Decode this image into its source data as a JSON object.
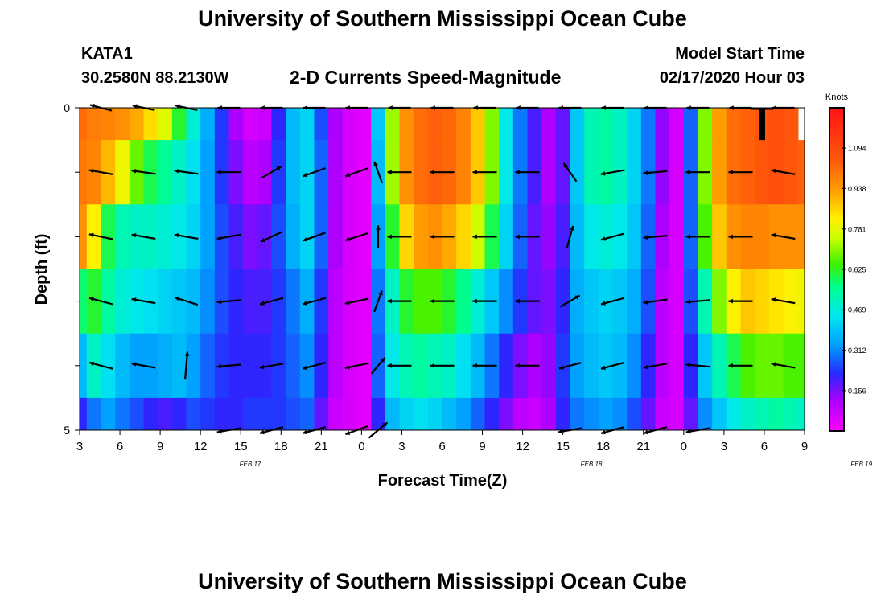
{
  "header": {
    "title": "University of Southern Mississippi Ocean Cube",
    "station": "KATA1",
    "coordinates": "30.2580N 88.2130W",
    "subtitle": "2-D Currents Speed-Magnitude",
    "model_start_label": "Model Start Time",
    "model_start_value": "02/17/2020 Hour 03"
  },
  "footer": {
    "title": "University of Southern Mississippi Ocean Cube"
  },
  "chart_data": {
    "type": "heatmap",
    "title": "2-D Currents Speed-Magnitude",
    "xlabel": "Forecast Time(Z)",
    "ylabel": "Depth (ft)",
    "x_hours": [
      3,
      54
    ],
    "y_range": [
      0,
      5
    ],
    "x_ticks": [
      "3",
      "6",
      "9",
      "12",
      "15",
      "18",
      "21",
      "0",
      "3",
      "6",
      "9",
      "12",
      "15",
      "18",
      "21",
      "0",
      "3",
      "6",
      "9"
    ],
    "y_ticks": [
      "0",
      "",
      "",
      "",
      "",
      "5"
    ],
    "date_labels": [
      {
        "label": "FEB 17",
        "hour": 15
      },
      {
        "label": "FEB 18",
        "hour": 39
      },
      {
        "label": "FEB 19",
        "hour": 58
      }
    ],
    "colorbar": {
      "label": "Knots",
      "min": 0.0,
      "max": 1.25,
      "ticks": [
        "0.156",
        "0.312",
        "0.469",
        "0.625",
        "0.781",
        "0.938",
        "1.094"
      ],
      "tick_values": [
        0.156,
        0.312,
        0.469,
        0.625,
        0.781,
        0.938,
        1.094
      ]
    },
    "depth_layers": 5,
    "speed_profile_hours": [
      3,
      4,
      5,
      6,
      7,
      8,
      9,
      10,
      11,
      12,
      13,
      14,
      15,
      16,
      17,
      18,
      19,
      20,
      21,
      22,
      23,
      24,
      25,
      26,
      27,
      28,
      29,
      30,
      31,
      32,
      33,
      34,
      35,
      36,
      37,
      38,
      39,
      40,
      41,
      42,
      43,
      44,
      45,
      46,
      47,
      48,
      49,
      50,
      51,
      52,
      53,
      54
    ],
    "speed_by_layer": [
      [
        1.02,
        0.99,
        0.98,
        0.96,
        0.92,
        0.85,
        0.78,
        0.62,
        0.48,
        0.36,
        0.24,
        0.12,
        0.06,
        0.08,
        0.22,
        0.38,
        0.42,
        0.26,
        0.12,
        0.06,
        0.04,
        0.4,
        0.72,
        0.96,
        1.02,
        1.04,
        1.03,
        0.98,
        0.88,
        0.7,
        0.46,
        0.3,
        0.2,
        0.12,
        0.18,
        0.4,
        0.52,
        0.54,
        0.5,
        0.42,
        0.3,
        0.14,
        0.06,
        0.28,
        0.7,
        0.94,
        1.02,
        1.04,
        1.06,
        1.08,
        1.06,
        1.04
      ],
      [
        1.0,
        0.98,
        0.9,
        0.8,
        0.68,
        0.6,
        0.55,
        0.5,
        0.44,
        0.34,
        0.24,
        0.16,
        0.1,
        0.12,
        0.24,
        0.38,
        0.42,
        0.28,
        0.12,
        0.06,
        0.04,
        0.38,
        0.72,
        0.96,
        1.02,
        1.04,
        1.03,
        0.98,
        0.88,
        0.7,
        0.46,
        0.3,
        0.2,
        0.12,
        0.18,
        0.4,
        0.52,
        0.54,
        0.5,
        0.42,
        0.3,
        0.14,
        0.06,
        0.28,
        0.7,
        0.94,
        1.02,
        1.04,
        1.06,
        1.08,
        1.06,
        1.04
      ],
      [
        0.96,
        0.82,
        0.6,
        0.52,
        0.5,
        0.5,
        0.48,
        0.46,
        0.42,
        0.34,
        0.26,
        0.2,
        0.16,
        0.18,
        0.26,
        0.36,
        0.42,
        0.28,
        0.12,
        0.06,
        0.04,
        0.34,
        0.62,
        0.86,
        0.94,
        0.96,
        0.92,
        0.86,
        0.76,
        0.6,
        0.42,
        0.28,
        0.18,
        0.14,
        0.2,
        0.38,
        0.46,
        0.48,
        0.46,
        0.4,
        0.28,
        0.12,
        0.06,
        0.28,
        0.66,
        0.88,
        0.96,
        0.98,
        0.98,
        0.96,
        0.96,
        0.96
      ],
      [
        0.58,
        0.62,
        0.54,
        0.48,
        0.46,
        0.44,
        0.42,
        0.4,
        0.38,
        0.32,
        0.26,
        0.22,
        0.2,
        0.2,
        0.24,
        0.3,
        0.36,
        0.24,
        0.1,
        0.06,
        0.04,
        0.3,
        0.5,
        0.62,
        0.66,
        0.66,
        0.62,
        0.56,
        0.48,
        0.4,
        0.32,
        0.24,
        0.18,
        0.16,
        0.22,
        0.36,
        0.4,
        0.42,
        0.4,
        0.36,
        0.26,
        0.1,
        0.06,
        0.26,
        0.52,
        0.7,
        0.82,
        0.88,
        0.86,
        0.84,
        0.82,
        0.8
      ],
      [
        0.38,
        0.5,
        0.44,
        0.38,
        0.34,
        0.34,
        0.36,
        0.38,
        0.34,
        0.28,
        0.24,
        0.22,
        0.22,
        0.22,
        0.24,
        0.28,
        0.32,
        0.22,
        0.1,
        0.06,
        0.04,
        0.28,
        0.46,
        0.52,
        0.54,
        0.52,
        0.5,
        0.44,
        0.38,
        0.3,
        0.22,
        0.16,
        0.12,
        0.14,
        0.24,
        0.34,
        0.38,
        0.4,
        0.38,
        0.32,
        0.22,
        0.1,
        0.06,
        0.22,
        0.4,
        0.52,
        0.6,
        0.66,
        0.68,
        0.68,
        0.66,
        0.66
      ],
      [
        0.22,
        0.3,
        0.34,
        0.3,
        0.26,
        0.22,
        0.2,
        0.22,
        0.26,
        0.24,
        0.22,
        0.22,
        0.24,
        0.24,
        0.24,
        0.26,
        0.28,
        0.18,
        0.08,
        0.06,
        0.04,
        0.22,
        0.38,
        0.42,
        0.44,
        0.42,
        0.38,
        0.34,
        0.28,
        0.22,
        0.16,
        0.1,
        0.08,
        0.12,
        0.22,
        0.3,
        0.32,
        0.34,
        0.32,
        0.26,
        0.18,
        0.08,
        0.06,
        0.18,
        0.32,
        0.4,
        0.46,
        0.5,
        0.52,
        0.54,
        0.52,
        0.5
      ]
    ],
    "arrow_hours": [
      4.5,
      7.5,
      10.5,
      13.5,
      16.5,
      19.5,
      22.5,
      24.0,
      25.5,
      28.5,
      31.5,
      34.5,
      37.5,
      40.5,
      43.5,
      46.5,
      49.5,
      52.5
    ],
    "arrow_depths": [
      0,
      1,
      2,
      3,
      4,
      5
    ],
    "arrow_angles_deg": [
      [
        15,
        12,
        12,
        0,
        0,
        0,
        0,
        0,
        0,
        0,
        0,
        0,
        0,
        0,
        0,
        0,
        0,
        0
      ],
      [
        10,
        8,
        8,
        0,
        -30,
        -20,
        -20,
        -110,
        0,
        0,
        0,
        0,
        -125,
        -10,
        -5,
        0,
        0,
        10
      ],
      [
        12,
        10,
        10,
        -10,
        -25,
        -20,
        -18,
        -90,
        0,
        0,
        0,
        0,
        -75,
        -15,
        -5,
        0,
        0,
        10
      ],
      [
        15,
        10,
        18,
        -5,
        -15,
        -15,
        -12,
        -70,
        0,
        0,
        0,
        0,
        -30,
        -15,
        -8,
        -5,
        0,
        10
      ],
      [
        15,
        10,
        -85,
        -5,
        -10,
        -15,
        -12,
        -50,
        0,
        0,
        0,
        0,
        -15,
        -15,
        -10,
        5,
        0,
        10
      ],
      [
        0,
        0,
        0,
        -10,
        -15,
        -15,
        -20,
        -40,
        0,
        0,
        0,
        0,
        -10,
        -15,
        -15,
        -10,
        0,
        0
      ]
    ],
    "arrow_lengths": [
      [
        28,
        28,
        28,
        28,
        28,
        28,
        28,
        0,
        28,
        28,
        28,
        28,
        28,
        28,
        28,
        28,
        28,
        28
      ],
      [
        30,
        30,
        30,
        30,
        28,
        30,
        30,
        28,
        30,
        30,
        30,
        30,
        28,
        30,
        30,
        30,
        30,
        30
      ],
      [
        30,
        30,
        30,
        30,
        30,
        30,
        30,
        28,
        30,
        30,
        30,
        30,
        28,
        30,
        30,
        30,
        30,
        30
      ],
      [
        30,
        30,
        30,
        30,
        30,
        30,
        30,
        28,
        30,
        30,
        30,
        30,
        28,
        30,
        30,
        30,
        30,
        30
      ],
      [
        30,
        30,
        35,
        30,
        30,
        30,
        30,
        26,
        30,
        30,
        30,
        30,
        28,
        30,
        30,
        30,
        30,
        30
      ],
      [
        0,
        0,
        0,
        30,
        30,
        30,
        30,
        30,
        0,
        0,
        0,
        0,
        30,
        30,
        30,
        30,
        0,
        0
      ]
    ],
    "markers": [
      {
        "name": "black-bar",
        "hour": 51.0,
        "depth_from": 0.0,
        "depth_to": 0.5,
        "color": "#000000"
      },
      {
        "name": "white-bar",
        "hour": 53.8,
        "depth_from": 0.0,
        "depth_to": 0.5,
        "color": "#ffffff"
      }
    ]
  }
}
